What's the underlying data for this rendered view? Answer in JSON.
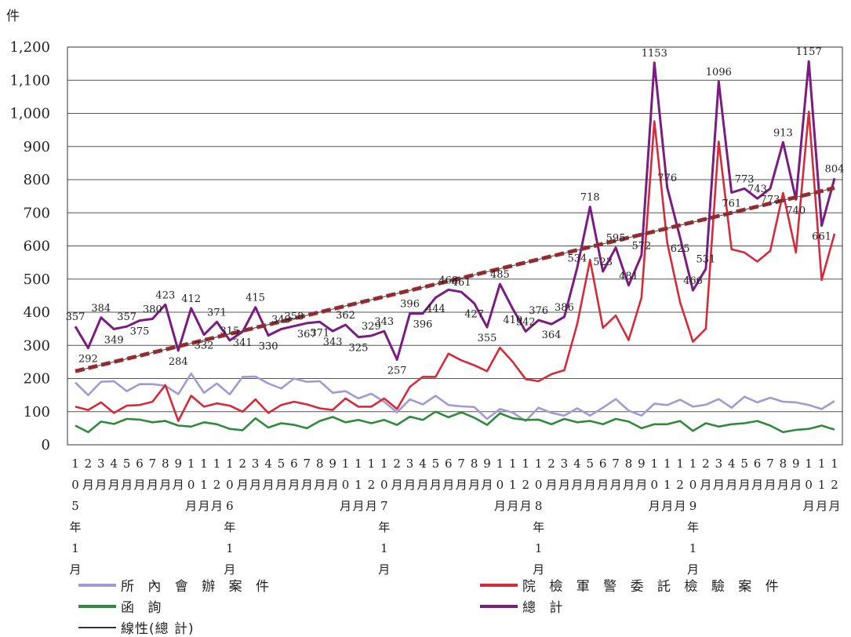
{
  "chart_data": {
    "type": "line",
    "ylabel": "件",
    "ylim": [
      0,
      1200
    ],
    "yticks": [
      0,
      100,
      200,
      300,
      400,
      500,
      600,
      700,
      800,
      900,
      1000,
      1100,
      1200
    ],
    "ytick_labels": [
      "0",
      "100",
      "200",
      "300",
      "400",
      "500",
      "600",
      "700",
      "800",
      "900",
      "1,000",
      "1,100",
      "1,200"
    ],
    "grid": true,
    "x_labels": [
      "1\n0\n5\n年\n1\n月",
      "2\n月",
      "3\n月",
      "4\n月",
      "5\n月",
      "6\n月",
      "7\n月",
      "8\n月",
      "9\n月",
      "1\n0\n月",
      "1\n1\n月",
      "1\n2\n月",
      "1\n0\n6\n年\n1\n月",
      "2\n月",
      "3\n月",
      "4\n月",
      "5\n月",
      "6\n月",
      "7\n月",
      "8\n月",
      "9\n月",
      "1\n0\n月",
      "1\n1\n月",
      "1\n2\n月",
      "1\n0\n7\n年\n1\n月",
      "2\n月",
      "3\n月",
      "4\n月",
      "5\n月",
      "6\n月",
      "7\n月",
      "8\n月",
      "9\n月",
      "1\n0\n月",
      "1\n1\n月",
      "1\n2\n月",
      "1\n0\n8\n年\n1\n月",
      "2\n月",
      "3\n月",
      "4\n月",
      "5\n月",
      "6\n月",
      "7\n月",
      "8\n月",
      "9\n月",
      "1\n0\n月",
      "1\n1\n月",
      "1\n2\n月",
      "1\n0\n9\n年\n1\n月",
      "2\n月",
      "3\n月",
      "4\n月",
      "5\n月",
      "6\n月",
      "7\n月",
      "8\n月",
      "9\n月",
      "1\n0\n月",
      "1\n1\n月",
      "1\n2\n月"
    ],
    "series": [
      {
        "name": "所 內 會 辦 案 件",
        "color": "#a39ad2",
        "values": [
          188,
          150,
          190,
          192,
          162,
          183,
          183,
          178,
          153,
          215,
          157,
          185,
          152,
          205,
          206,
          185,
          170,
          200,
          190,
          192,
          157,
          162,
          140,
          154,
          130,
          98,
          137,
          122,
          148,
          120,
          116,
          114,
          78,
          108,
          97,
          72,
          112,
          96,
          88,
          110,
          88,
          112,
          138,
          103,
          88,
          124,
          120,
          136,
          115,
          121,
          138,
          112,
          145,
          128,
          142,
          130,
          128,
          120,
          108,
          132
        ]
      },
      {
        "name": "院 檢 軍 警 委 託 檢 驗 案 件",
        "color": "#d62a3a",
        "values": [
          115,
          105,
          128,
          96,
          118,
          120,
          130,
          180,
          72,
          148,
          115,
          125,
          118,
          100,
          137,
          96,
          120,
          130,
          122,
          110,
          105,
          140,
          115,
          115,
          140,
          108,
          175,
          205,
          205,
          275,
          255,
          240,
          222,
          293,
          250,
          198,
          192,
          213,
          225,
          364,
          558,
          353,
          390,
          316,
          444,
          976,
          610,
          430,
          311,
          350,
          915,
          590,
          580,
          553,
          585,
          760,
          580,
          1005,
          497,
          637
        ]
      },
      {
        "name": "函 詢",
        "color": "#2f8a3c",
        "values": [
          58,
          38,
          70,
          63,
          78,
          76,
          68,
          72,
          58,
          55,
          68,
          62,
          48,
          44,
          80,
          52,
          65,
          60,
          50,
          72,
          84,
          68,
          75,
          65,
          75,
          60,
          85,
          75,
          100,
          83,
          98,
          82,
          60,
          95,
          80,
          75,
          76,
          62,
          78,
          68,
          72,
          62,
          78,
          70,
          50,
          62,
          62,
          72,
          42,
          65,
          55,
          62,
          65,
          72,
          58,
          38,
          45,
          48,
          58,
          46
        ]
      },
      {
        "name": "總 計",
        "color": "#7a1c80",
        "values": [
          357,
          292,
          384,
          349,
          357,
          375,
          380,
          423,
          284,
          412,
          332,
          371,
          315,
          341,
          415,
          330,
          349,
          358,
          367,
          371,
          343,
          362,
          325,
          329,
          343,
          257,
          396,
          396,
          444,
          468,
          461,
          427,
          355,
          485,
          410,
          342,
          376,
          364,
          386,
          534,
          718,
          523,
          595,
          481,
          572,
          1153,
          776,
          625,
          466,
          531,
          1096,
          761,
          773,
          743,
          773,
          913,
          740,
          1157,
          661,
          804
        ]
      }
    ],
    "data_labels": [
      {
        "series": 3,
        "index": 0,
        "text": "357",
        "pos": "above"
      },
      {
        "series": 3,
        "index": 1,
        "text": "292",
        "pos": "below"
      },
      {
        "series": 3,
        "index": 2,
        "text": "384",
        "pos": "above"
      },
      {
        "series": 3,
        "index": 3,
        "text": "349",
        "pos": "below"
      },
      {
        "series": 3,
        "index": 4,
        "text": "357",
        "pos": "above"
      },
      {
        "series": 3,
        "index": 5,
        "text": "375",
        "pos": "below"
      },
      {
        "series": 3,
        "index": 6,
        "text": "380",
        "pos": "above"
      },
      {
        "series": 3,
        "index": 7,
        "text": "423",
        "pos": "above"
      },
      {
        "series": 3,
        "index": 8,
        "text": "284",
        "pos": "below"
      },
      {
        "series": 3,
        "index": 9,
        "text": "412",
        "pos": "above"
      },
      {
        "series": 3,
        "index": 10,
        "text": "332",
        "pos": "below"
      },
      {
        "series": 3,
        "index": 11,
        "text": "371",
        "pos": "above"
      },
      {
        "series": 3,
        "index": 12,
        "text": "315",
        "pos": "above"
      },
      {
        "series": 3,
        "index": 13,
        "text": "341",
        "pos": "below"
      },
      {
        "series": 3,
        "index": 14,
        "text": "415",
        "pos": "above"
      },
      {
        "series": 3,
        "index": 15,
        "text": "330",
        "pos": "below"
      },
      {
        "series": 3,
        "index": 16,
        "text": "349",
        "pos": "above"
      },
      {
        "series": 3,
        "index": 17,
        "text": "358",
        "pos": "above"
      },
      {
        "series": 3,
        "index": 18,
        "text": "367",
        "pos": "below"
      },
      {
        "series": 3,
        "index": 19,
        "text": "371",
        "pos": "below"
      },
      {
        "series": 3,
        "index": 20,
        "text": "343",
        "pos": "below"
      },
      {
        "series": 3,
        "index": 21,
        "text": "362",
        "pos": "above"
      },
      {
        "series": 3,
        "index": 22,
        "text": "325",
        "pos": "below"
      },
      {
        "series": 3,
        "index": 23,
        "text": "329",
        "pos": "above"
      },
      {
        "series": 3,
        "index": 24,
        "text": "343",
        "pos": "above"
      },
      {
        "series": 3,
        "index": 25,
        "text": "257",
        "pos": "below"
      },
      {
        "series": 3,
        "index": 26,
        "text": "396",
        "pos": "above"
      },
      {
        "series": 3,
        "index": 27,
        "text": "396",
        "pos": "below"
      },
      {
        "series": 3,
        "index": 28,
        "text": "444",
        "pos": "below"
      },
      {
        "series": 3,
        "index": 29,
        "text": "468",
        "pos": "above"
      },
      {
        "series": 3,
        "index": 30,
        "text": "461",
        "pos": "above"
      },
      {
        "series": 3,
        "index": 31,
        "text": "427",
        "pos": "below"
      },
      {
        "series": 3,
        "index": 32,
        "text": "355",
        "pos": "below"
      },
      {
        "series": 3,
        "index": 33,
        "text": "485",
        "pos": "above"
      },
      {
        "series": 3,
        "index": 34,
        "text": "410",
        "pos": "below"
      },
      {
        "series": 3,
        "index": 35,
        "text": "342",
        "pos": "above"
      },
      {
        "series": 3,
        "index": 36,
        "text": "376",
        "pos": "above"
      },
      {
        "series": 3,
        "index": 37,
        "text": "364",
        "pos": "below"
      },
      {
        "series": 3,
        "index": 38,
        "text": "386",
        "pos": "above"
      },
      {
        "series": 3,
        "index": 39,
        "text": "534",
        "pos": "above"
      },
      {
        "series": 3,
        "index": 40,
        "text": "718",
        "pos": "above"
      },
      {
        "series": 3,
        "index": 41,
        "text": "523",
        "pos": "above"
      },
      {
        "series": 3,
        "index": 42,
        "text": "595",
        "pos": "above"
      },
      {
        "series": 3,
        "index": 43,
        "text": "481",
        "pos": "above"
      },
      {
        "series": 3,
        "index": 44,
        "text": "572",
        "pos": "above"
      },
      {
        "series": 3,
        "index": 45,
        "text": "1153",
        "pos": "above"
      },
      {
        "series": 3,
        "index": 46,
        "text": "776",
        "pos": "above"
      },
      {
        "series": 3,
        "index": 47,
        "text": "625",
        "pos": "below"
      },
      {
        "series": 3,
        "index": 48,
        "text": "466",
        "pos": "above"
      },
      {
        "series": 3,
        "index": 49,
        "text": "531",
        "pos": "above"
      },
      {
        "series": 3,
        "index": 50,
        "text": "1096",
        "pos": "above"
      },
      {
        "series": 3,
        "index": 51,
        "text": "761",
        "pos": "below"
      },
      {
        "series": 3,
        "index": 52,
        "text": "773",
        "pos": "above"
      },
      {
        "series": 3,
        "index": 53,
        "text": "743",
        "pos": "above"
      },
      {
        "series": 3,
        "index": 54,
        "text": "773",
        "pos": "below"
      },
      {
        "series": 3,
        "index": 55,
        "text": "913",
        "pos": "above"
      },
      {
        "series": 3,
        "index": 56,
        "text": "740",
        "pos": "below"
      },
      {
        "series": 3,
        "index": 57,
        "text": "1157",
        "pos": "above"
      },
      {
        "series": 3,
        "index": 58,
        "text": "661",
        "pos": "below"
      },
      {
        "series": 3,
        "index": 59,
        "text": "804",
        "pos": "above"
      }
    ],
    "trendline": {
      "name": "線性(總 計)",
      "color": "#a8282e",
      "start": 222,
      "end": 775
    },
    "legend": {
      "placement": "bottom"
    }
  },
  "legend_items": [
    {
      "label": "所 內 會 辦 案 件",
      "color": "#a39ad2"
    },
    {
      "label": "院 檢 軍 警 委 託 檢 驗 案 件",
      "color": "#d62a3a"
    },
    {
      "label": "函 詢",
      "color": "#2f8a3c"
    },
    {
      "label": "總 計",
      "color": "#7a1c80"
    },
    {
      "label": "線性(總 計)",
      "color": "#333333"
    }
  ]
}
